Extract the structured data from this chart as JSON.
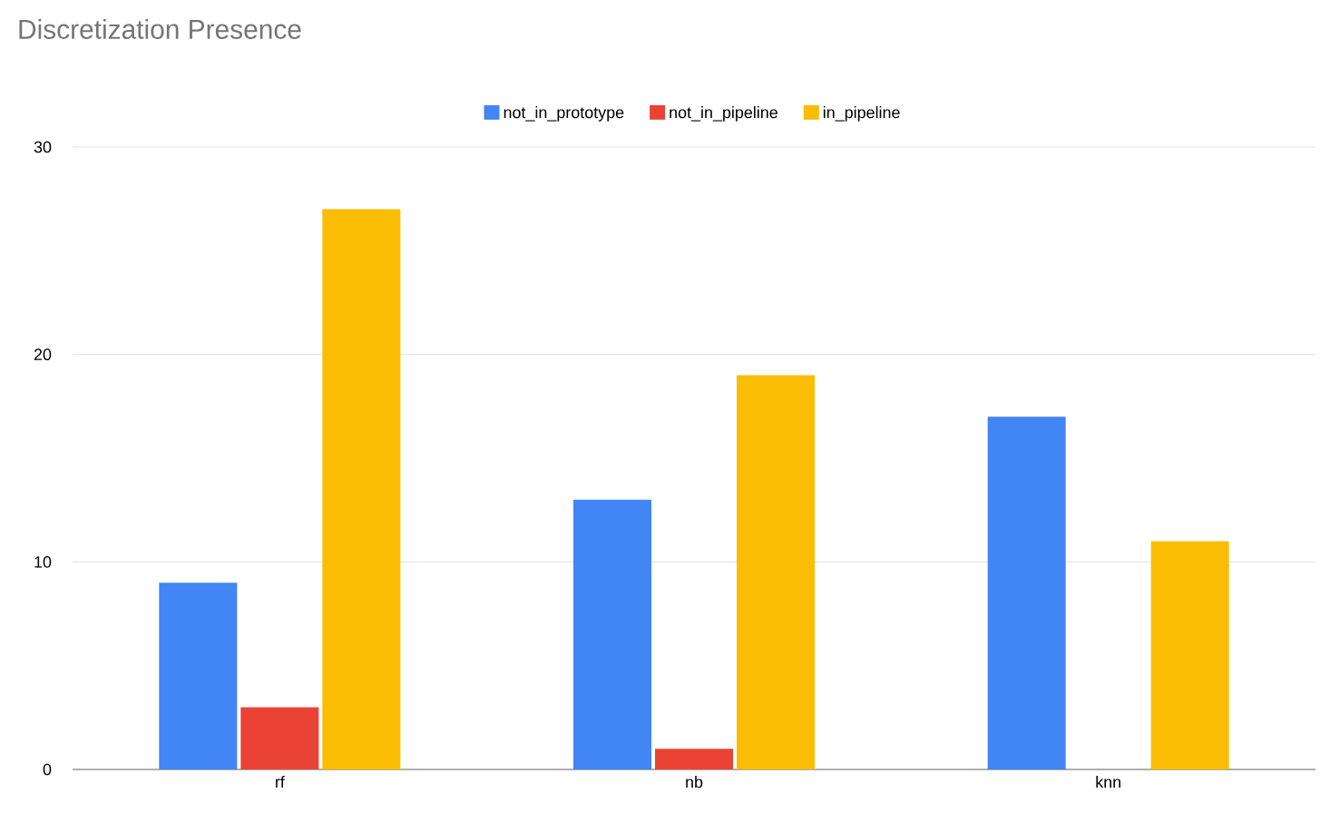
{
  "chart_data": {
    "type": "bar",
    "title": "Discretization Presence",
    "categories": [
      "rf",
      "nb",
      "knn"
    ],
    "series": [
      {
        "name": "not_in_prototype",
        "color": "#4285f4",
        "values": [
          9,
          13,
          17
        ]
      },
      {
        "name": "not_in_pipeline",
        "color": "#ea4335",
        "values": [
          3,
          1,
          0
        ]
      },
      {
        "name": "in_pipeline",
        "color": "#fbbc04",
        "values": [
          27,
          19,
          11
        ]
      }
    ],
    "ylim": [
      0,
      30
    ],
    "yticks": [
      0,
      10,
      20,
      30
    ],
    "grid": "y",
    "legend": "top"
  }
}
